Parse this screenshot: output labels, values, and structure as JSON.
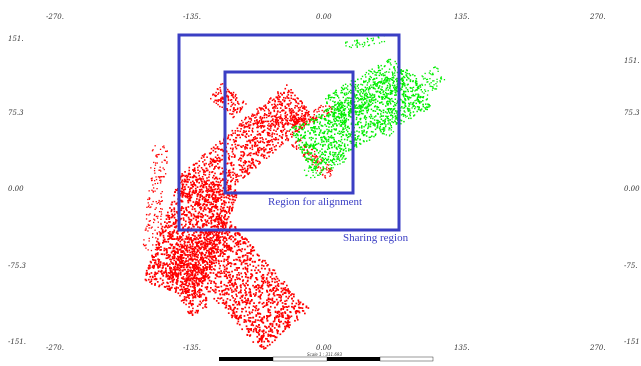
{
  "map": {
    "top_x_ticks": [
      "-270.",
      "-135.",
      "0.00",
      "135.",
      "270."
    ],
    "bottom_x_ticks": [
      "-270.",
      "-135.",
      "0.00",
      "135.",
      "270."
    ],
    "left_y_ticks": [
      "151.",
      "75.3",
      "0.00",
      "-75.3",
      "-151."
    ],
    "right_y_ticks": [
      "151.",
      "75.3",
      "0.00",
      "-75.",
      "-151"
    ],
    "colors": {
      "region_box": "#3b3fc4",
      "map_red": "#ff0000",
      "map_green": "#00ee00",
      "scale_bar": "#000000"
    }
  },
  "regions": {
    "alignment_label": "Region for alignment",
    "sharing_label": "Sharing region"
  },
  "scale_bar": {
    "label": "Scale 1 : 311.693"
  }
}
